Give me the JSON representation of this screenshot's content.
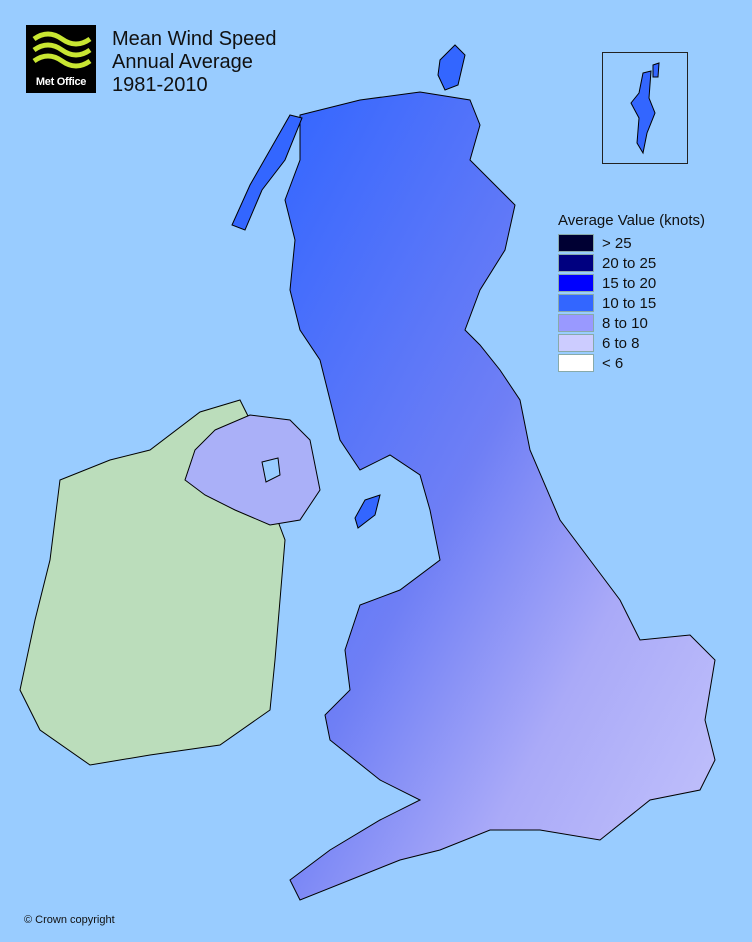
{
  "logo": {
    "text": "Met Office",
    "colors": {
      "background": "#000000",
      "waves": "#c8e632"
    }
  },
  "title": {
    "line1": "Mean Wind Speed",
    "line2": "Annual Average",
    "line3": "1981-2010"
  },
  "legend": {
    "title": "Average Value (knots)",
    "items": [
      {
        "label": "> 25",
        "color": "#000033"
      },
      {
        "label": "20 to 25",
        "color": "#000080"
      },
      {
        "label": "15 to 20",
        "color": "#0000ff"
      },
      {
        "label": "10 to 15",
        "color": "#3366ff"
      },
      {
        "label": "8 to 10",
        "color": "#9999ff"
      },
      {
        "label": "6 to 8",
        "color": "#ccccff"
      },
      {
        "label": "< 6",
        "color": "#ffffff"
      }
    ]
  },
  "colors": {
    "sea": "#99ccff",
    "ireland": "#bbddbb",
    "coastline": "#000000"
  },
  "copyright": "© Crown copyright"
}
